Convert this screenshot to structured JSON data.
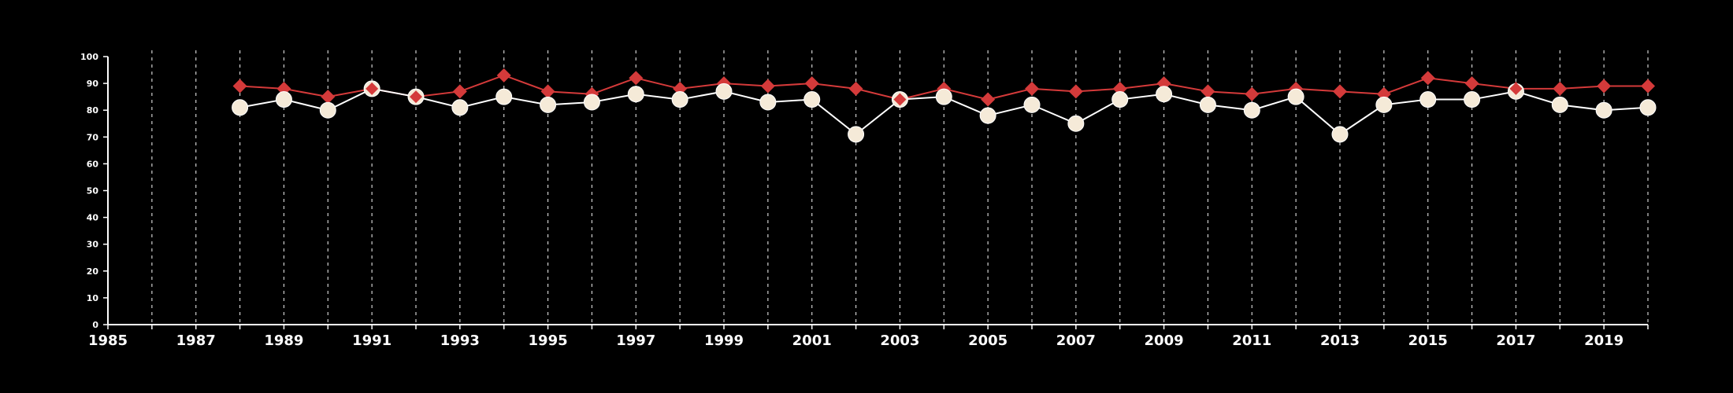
{
  "colors": {
    "background": "#000000",
    "axis": "#ffffff",
    "grid": "#cfcfcf",
    "tick_text": "#ffffff",
    "series_red": "#d43a3a",
    "series_white_line": "#ffffff",
    "series_white_fill": "#f5ead8"
  },
  "chart_data": {
    "type": "line",
    "xlim": [
      1985,
      2020
    ],
    "ylim": [
      0,
      100
    ],
    "grid": "vertical dashed lines at every year",
    "x_tick_labels": [
      "1985",
      "1987",
      "1989",
      "1991",
      "1993",
      "1995",
      "1997",
      "1999",
      "2001",
      "2003",
      "2005",
      "2007",
      "2009",
      "2011",
      "2013",
      "2015",
      "2017",
      "2019"
    ],
    "y_tick_labels": [
      "0",
      "10",
      "20",
      "30",
      "40",
      "50",
      "60",
      "70",
      "80",
      "90",
      "100"
    ],
    "x": [
      1988,
      1989,
      1990,
      1991,
      1992,
      1993,
      1994,
      1995,
      1996,
      1997,
      1998,
      1999,
      2000,
      2001,
      2002,
      2003,
      2004,
      2005,
      2006,
      2007,
      2008,
      2009,
      2010,
      2011,
      2012,
      2013,
      2014,
      2015,
      2016,
      2017,
      2018,
      2019,
      2020
    ],
    "series": [
      {
        "marker": "circle",
        "color": "#f5ead8",
        "values": [
          81,
          84,
          80,
          88,
          85,
          81,
          85,
          82,
          83,
          86,
          84,
          87,
          83,
          84,
          71,
          84,
          85,
          78,
          82,
          75,
          84,
          86,
          82,
          80,
          85,
          71,
          82,
          84,
          84,
          87,
          82,
          80,
          81
        ]
      },
      {
        "marker": "diamond",
        "color": "#d43a3a",
        "values": [
          89,
          88,
          85,
          88,
          85,
          87,
          93,
          87,
          86,
          92,
          88,
          90,
          89,
          90,
          88,
          84,
          88,
          84,
          88,
          87,
          88,
          90,
          87,
          86,
          88,
          87,
          86,
          92,
          90,
          88,
          88,
          89,
          89
        ]
      }
    ]
  }
}
